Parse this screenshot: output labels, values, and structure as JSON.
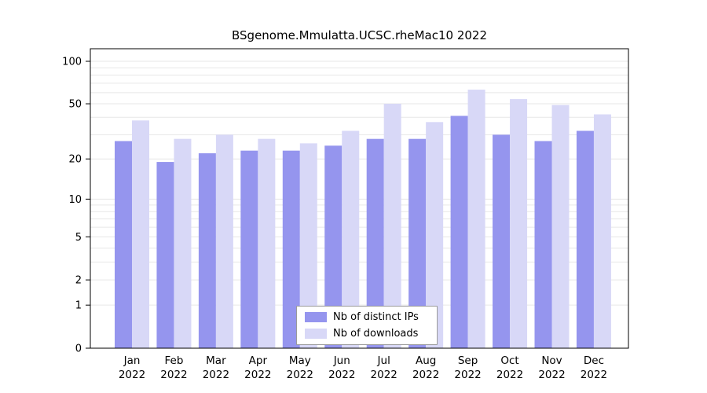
{
  "chart_data": {
    "type": "bar",
    "title": "BSgenome.Mmulatta.UCSC.rheMac10 2022",
    "categories": [
      "Jan",
      "Feb",
      "Mar",
      "Apr",
      "May",
      "Jun",
      "Jul",
      "Aug",
      "Sep",
      "Oct",
      "Nov",
      "Dec"
    ],
    "year_label": "2022",
    "series": [
      {
        "name": "Nb of distinct IPs",
        "color": "#9595ee",
        "values": [
          27,
          19,
          22,
          23,
          23,
          25,
          28,
          28,
          41,
          30,
          27,
          32
        ]
      },
      {
        "name": "Nb of downloads",
        "color": "#d8d8f7",
        "values": [
          38,
          28,
          30,
          28,
          26,
          32,
          50,
          37,
          63,
          54,
          49,
          42
        ]
      }
    ],
    "xlabel": "",
    "ylabel": "",
    "yscale": "log1p",
    "ylim": [
      0,
      100
    ],
    "yticks": [
      0,
      1,
      2,
      5,
      10,
      20,
      50,
      100
    ],
    "minor_gridlines": [
      1,
      2,
      3,
      4,
      5,
      6,
      7,
      8,
      9,
      10,
      20,
      30,
      40,
      50,
      60,
      70,
      80,
      90,
      100
    ],
    "grid": true,
    "legend_position": "bottom-center",
    "colors": {
      "gridline": "#e7e7e7",
      "axis": "#000000",
      "background": "#ffffff"
    }
  }
}
